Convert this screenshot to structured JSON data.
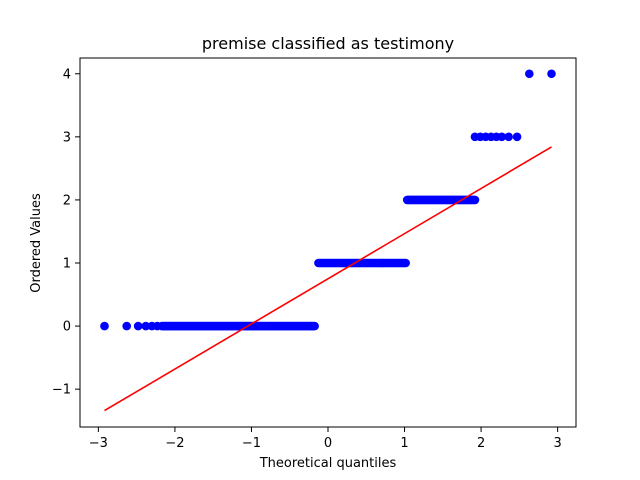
{
  "chart_data": {
    "type": "scatter",
    "title": "premise classified as testimony",
    "xlabel": "Theoretical quantiles",
    "ylabel": "Ordered Values",
    "xlim": [
      -3.24,
      3.24
    ],
    "ylim": [
      -1.6,
      4.25
    ],
    "xticks": [
      -3,
      -2,
      -1,
      0,
      1,
      2,
      3
    ],
    "yticks": [
      -1,
      0,
      1,
      2,
      3,
      4
    ],
    "xtick_labels": [
      "−3",
      "−2",
      "−1",
      "0",
      "1",
      "2",
      "3"
    ],
    "ytick_labels": [
      "−1",
      "0",
      "1",
      "2",
      "3",
      "4"
    ],
    "grid": false,
    "series": [
      {
        "kind": "points",
        "color": "#0000ff",
        "groups": [
          {
            "y": 0,
            "x_start": -2.92,
            "x_end": -0.17,
            "explicit_x": [
              -2.92,
              -2.63,
              -2.48,
              -2.38,
              -2.3,
              -2.23,
              -2.17
            ]
          },
          {
            "y": 1,
            "x_start": -0.14,
            "x_end": 1.02,
            "explicit_x": []
          },
          {
            "y": 2,
            "x_start": 1.02,
            "x_end": 1.92,
            "explicit_x": []
          },
          {
            "y": 3,
            "x_start": 1.92,
            "x_end": 2.47,
            "explicit_x": [
              1.92,
              1.99,
              2.06,
              2.13,
              2.2,
              2.27,
              2.36,
              2.47
            ]
          },
          {
            "y": 4,
            "x_start": 2.63,
            "x_end": 2.92,
            "explicit_x": [
              2.63,
              2.92
            ]
          }
        ]
      },
      {
        "kind": "fit-line",
        "color": "#ff0000",
        "x": [
          -2.92,
          2.92
        ],
        "y": [
          -1.34,
          2.84
        ]
      }
    ]
  }
}
